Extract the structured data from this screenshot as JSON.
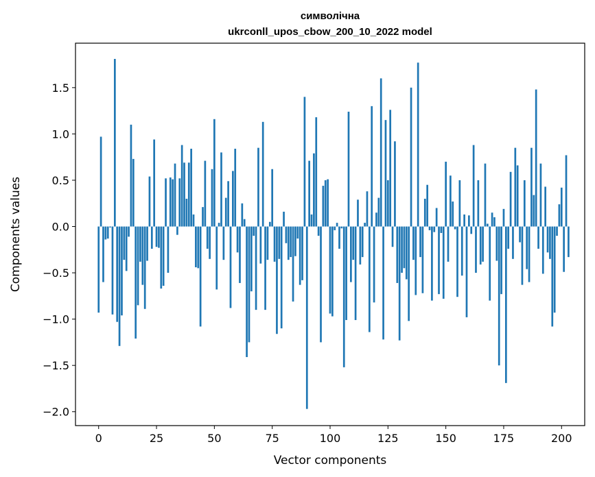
{
  "chart_data": {
    "type": "bar",
    "title": [
      "символічна",
      "ukrconll_upos_cbow_200_10_2022 model"
    ],
    "xlabel": "Vector components",
    "ylabel": "Components values",
    "xlim": [
      -10,
      210
    ],
    "ylim": [
      -2.15,
      1.98
    ],
    "xticks": [
      0,
      25,
      50,
      75,
      100,
      125,
      150,
      175,
      200
    ],
    "yticks": [
      1.5,
      1.0,
      0.5,
      0.0,
      -0.5,
      -1.0,
      -1.5,
      -2.0
    ],
    "ytick_labels": [
      "1.5",
      "1.0",
      "0.5",
      "0.0",
      "−0.5",
      "−1.0",
      "−1.5",
      "−2.0"
    ],
    "bar_color": "#1f77b4",
    "values": [
      -0.93,
      0.97,
      -0.6,
      -0.14,
      -0.13,
      -0.01,
      -0.95,
      1.81,
      -1.03,
      -1.29,
      -0.96,
      -0.36,
      -0.48,
      -0.11,
      1.1,
      0.73,
      -1.21,
      -0.85,
      -0.38,
      -0.63,
      -0.89,
      -0.37,
      0.54,
      -0.24,
      0.94,
      -0.22,
      -0.23,
      -0.67,
      -0.64,
      0.52,
      -0.5,
      0.53,
      0.51,
      0.68,
      -0.09,
      0.52,
      0.88,
      0.69,
      0.3,
      0.69,
      0.84,
      0.13,
      -0.44,
      -0.45,
      -1.08,
      0.21,
      0.71,
      -0.24,
      -0.35,
      0.62,
      1.16,
      -0.68,
      0.04,
      0.8,
      -0.36,
      0.31,
      0.49,
      -0.88,
      0.6,
      0.84,
      -0.28,
      -0.61,
      0.25,
      0.08,
      -1.41,
      -1.25,
      -0.7,
      -0.1,
      -0.9,
      0.85,
      -0.4,
      1.13,
      -0.9,
      -0.36,
      0.05,
      0.62,
      -0.38,
      -1.16,
      -0.35,
      -1.1,
      0.16,
      -0.18,
      -0.36,
      -0.33,
      -0.81,
      -0.32,
      -0.13,
      -0.63,
      -0.58,
      1.4,
      -1.97,
      0.71,
      0.13,
      0.79,
      1.18,
      -0.1,
      -1.25,
      0.44,
      0.5,
      0.51,
      -0.94,
      -0.97,
      -0.04,
      0.04,
      -0.24,
      -0.02,
      -1.52,
      -1.01,
      1.24,
      -0.6,
      -0.36,
      -1.01,
      0.29,
      -0.41,
      -0.33,
      0.04,
      0.38,
      -1.14,
      1.3,
      -0.82,
      0.15,
      0.31,
      1.6,
      -1.22,
      1.15,
      0.5,
      1.26,
      -0.22,
      0.92,
      -0.61,
      -1.23,
      -0.5,
      -0.45,
      -0.57,
      -1.02,
      1.5,
      -0.36,
      -0.74,
      1.77,
      -0.33,
      -0.72,
      0.3,
      0.45,
      -0.04,
      -0.8,
      -0.06,
      0.2,
      -0.73,
      -0.07,
      -0.78,
      0.7,
      -0.38,
      0.55,
      0.27,
      -0.03,
      -0.76,
      0.5,
      -0.53,
      0.13,
      -0.98,
      0.12,
      -0.08,
      0.88,
      -0.5,
      0.5,
      -0.41,
      -0.38,
      0.68,
      0.03,
      -0.8,
      0.15,
      0.1,
      -0.37,
      -1.5,
      -0.73,
      0.19,
      -1.69,
      -0.24,
      0.59,
      -0.35,
      0.85,
      0.66,
      -0.17,
      -0.63,
      0.5,
      -0.46,
      -0.6,
      0.85,
      0.34,
      1.48,
      -0.24,
      0.68,
      -0.51,
      0.43,
      -0.28,
      -0.35,
      -1.08,
      -0.93,
      -0.1,
      0.24,
      0.42,
      -0.49,
      0.77,
      -0.33
    ]
  }
}
